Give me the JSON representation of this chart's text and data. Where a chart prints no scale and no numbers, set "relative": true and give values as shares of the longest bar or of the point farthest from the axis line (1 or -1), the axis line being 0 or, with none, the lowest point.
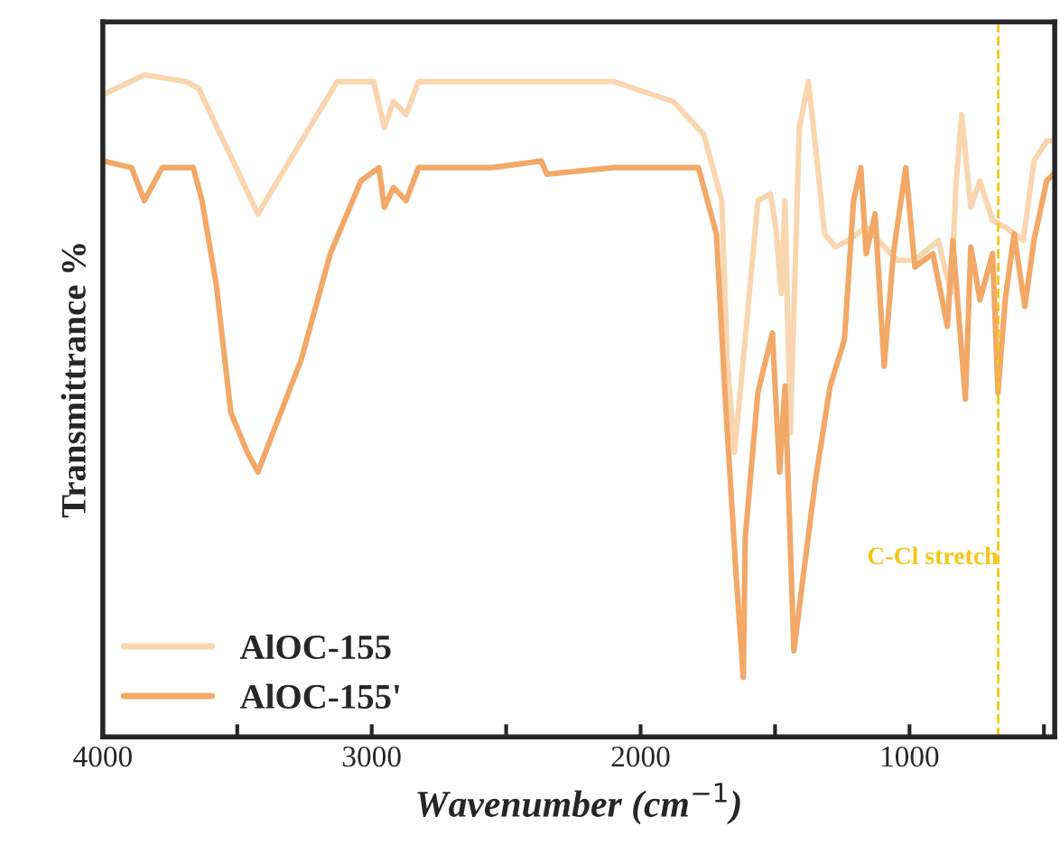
{
  "chart_data": {
    "type": "line",
    "relative": true,
    "xlabel": "Wavenumber (cm$^{−1}$)",
    "ylabel": "Transmittrance %",
    "xlim": [
      4000,
      460
    ],
    "xticks": [
      4000,
      {
        "value": 3500,
        "label": null
      },
      3000,
      {
        "value": 2500,
        "label": null
      },
      2000,
      {
        "value": 1500,
        "label": null
      },
      1000,
      {
        "value": 500,
        "label": null
      }
    ],
    "tick_labels": "x",
    "grid": false,
    "legend": "bottom left",
    "line_style": "solid",
    "marker": "none",
    "ref_lines": [
      {
        "axis": "x",
        "value": 670,
        "label": "C-Cl stretch",
        "color": "#f5c518",
        "line_style": "dashed"
      }
    ],
    "series": [
      {
        "name": "AlOC-155",
        "color": "#f9d6b0",
        "x": [
          4000,
          3846,
          3691,
          3644,
          3423,
          3262,
          3128,
          2993,
          2953,
          2919,
          2872,
          2826,
          2550,
          2101,
          1879,
          1765,
          1698,
          1678,
          1651,
          1618,
          1564,
          1517,
          1497,
          1477,
          1463,
          1443,
          1410,
          1376,
          1349,
          1316,
          1275,
          1228,
          1161,
          1047,
          980,
          893,
          846,
          826,
          806,
          772,
          738,
          691,
          644,
          577,
          537,
          490,
          465
        ],
        "values": [
          0.97,
          1.0,
          0.99,
          0.98,
          0.79,
          0.9,
          0.99,
          0.99,
          0.92,
          0.96,
          0.94,
          0.99,
          0.99,
          0.99,
          0.96,
          0.91,
          0.81,
          0.57,
          0.43,
          0.57,
          0.81,
          0.82,
          0.77,
          0.67,
          0.81,
          0.46,
          0.92,
          0.99,
          0.89,
          0.76,
          0.74,
          0.75,
          0.77,
          0.72,
          0.72,
          0.75,
          0.67,
          0.84,
          0.94,
          0.8,
          0.84,
          0.78,
          0.77,
          0.75,
          0.87,
          0.9,
          0.9
        ]
      },
      {
        "name": "AlOC-155'",
        "color": "#f2a867",
        "x": [
          4000,
          3893,
          3846,
          3779,
          3664,
          3631,
          3577,
          3524,
          3463,
          3423,
          3376,
          3262,
          3154,
          3040,
          2973,
          2953,
          2919,
          2872,
          2826,
          2550,
          2369,
          2349,
          2101,
          1785,
          1718,
          1685,
          1644,
          1618,
          1611,
          1564,
          1510,
          1483,
          1463,
          1430,
          1396,
          1349,
          1295,
          1242,
          1208,
          1181,
          1161,
          1128,
          1094,
          1060,
          1014,
          980,
          913,
          859,
          839,
          792,
          772,
          738,
          691,
          671,
          644,
          611,
          571,
          537,
          490,
          465
        ],
        "values": [
          0.87,
          0.86,
          0.81,
          0.86,
          0.86,
          0.81,
          0.68,
          0.49,
          0.43,
          0.4,
          0.45,
          0.57,
          0.73,
          0.84,
          0.86,
          0.8,
          0.83,
          0.81,
          0.86,
          0.86,
          0.87,
          0.85,
          0.86,
          0.86,
          0.76,
          0.51,
          0.24,
          0.09,
          0.3,
          0.52,
          0.61,
          0.4,
          0.53,
          0.13,
          0.24,
          0.39,
          0.53,
          0.6,
          0.81,
          0.86,
          0.73,
          0.79,
          0.56,
          0.73,
          0.86,
          0.71,
          0.73,
          0.62,
          0.75,
          0.51,
          0.74,
          0.66,
          0.73,
          0.52,
          0.66,
          0.76,
          0.65,
          0.75,
          0.84,
          0.85
        ]
      }
    ]
  }
}
